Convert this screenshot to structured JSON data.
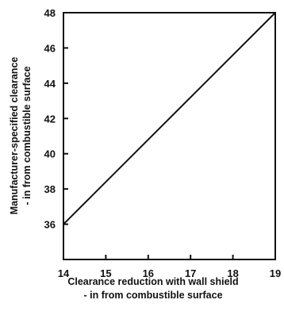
{
  "chart_data": {
    "type": "line",
    "title": "",
    "xlabel": [
      "Clearance reduction with wall shield",
      "- in from combustible surface"
    ],
    "ylabel": [
      "Manufacturer-specified clearance",
      "- in from combustible surface"
    ],
    "xlim": [
      14,
      19
    ],
    "ylim": [
      34,
      48
    ],
    "x_ticks": [
      "14",
      "15",
      "16",
      "17",
      "18",
      "19"
    ],
    "y_ticks": [
      "36",
      "38",
      "40",
      "42",
      "44",
      "46",
      "48"
    ],
    "grid": false,
    "legend": "none",
    "series": [
      {
        "x": [
          14,
          19
        ],
        "y": [
          36,
          48
        ]
      }
    ],
    "reference_lines": [
      {
        "style": "dashed",
        "x": [
          14,
          19
        ],
        "y": [
          48,
          48
        ]
      },
      {
        "style": "dashed",
        "x": [
          19,
          19
        ],
        "y": [
          34,
          48
        ]
      }
    ],
    "colors": {
      "line": "#111111",
      "axis": "#111111",
      "background": "#ffffff"
    }
  }
}
